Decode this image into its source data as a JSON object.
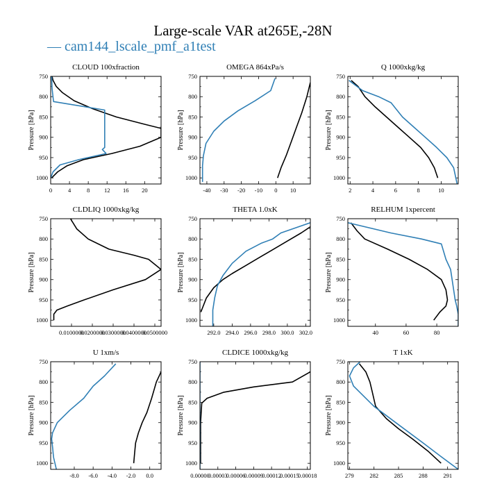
{
  "figure": {
    "title": "Large-scale VAR at265E,-28N",
    "legend_label": "cam144_lscale_pmf_a1test",
    "legend_dash": "—"
  },
  "colors": {
    "black_series": "#000000",
    "blue_series": "#2f7fb5"
  },
  "chart_data": [
    {
      "type": "line",
      "title": "CLOUD  100xfraction",
      "ylabel": "Pressure [hPa]",
      "xlim": [
        0,
        23.5
      ],
      "ylim": [
        750,
        1015
      ],
      "xticks": [
        0,
        4,
        8,
        12,
        16,
        20
      ],
      "xtick_labels": [
        "0",
        "4",
        "8",
        "12",
        "16",
        "20"
      ],
      "yticks": [
        750,
        800,
        850,
        900,
        950,
        1000
      ],
      "series": [
        {
          "color": "black",
          "x": [
            0.3,
            0.5,
            1.2,
            2.5,
            5,
            9,
            14,
            20,
            23.5,
            23.5,
            19,
            13,
            7,
            3.5,
            1.5,
            0.2
          ],
          "p": [
            750,
            760,
            775,
            790,
            810,
            830,
            850,
            868,
            878,
            900,
            922,
            940,
            955,
            970,
            985,
            1000
          ]
        },
        {
          "color": "blue",
          "x": [
            0.2,
            0.3,
            0.6,
            11.5,
            11.5,
            11.0,
            11.8,
            6,
            2,
            0.5,
            0
          ],
          "p": [
            750,
            780,
            812,
            833,
            925,
            930,
            940,
            955,
            968,
            985,
            1000
          ]
        }
      ]
    },
    {
      "type": "line",
      "title": "OMEGA  864xPa/s",
      "ylabel": "Pressure [hPa]",
      "xlim": [
        -44,
        20
      ],
      "ylim": [
        750,
        1015
      ],
      "xticks": [
        -40,
        -30,
        -20,
        -10,
        0,
        10
      ],
      "xtick_labels": [
        "-40",
        "-30",
        "-20",
        "-10",
        "0",
        "10"
      ],
      "yticks": [
        750,
        800,
        850,
        900,
        950,
        1000
      ],
      "series": [
        {
          "color": "black",
          "x": [
            20,
            18,
            15,
            12,
            9,
            6,
            3,
            1
          ],
          "p": [
            765,
            800,
            840,
            875,
            910,
            945,
            975,
            1000
          ]
        },
        {
          "color": "blue",
          "x": [
            -0.5,
            -3,
            -12,
            -22,
            -30,
            -36,
            -40.5,
            -42,
            -42.5,
            -42.5,
            -42.5
          ],
          "p": [
            755,
            785,
            810,
            835,
            860,
            885,
            915,
            945,
            970,
            990,
            1010
          ]
        }
      ]
    },
    {
      "type": "line",
      "title": "Q  1000xkg/kg",
      "ylabel": "Pressure [hPa]",
      "xlim": [
        1.8,
        11.5
      ],
      "ylim": [
        750,
        1015
      ],
      "xticks": [
        2,
        4,
        6,
        8,
        10
      ],
      "xtick_labels": [
        "2",
        "4",
        "6",
        "8",
        "10"
      ],
      "yticks": [
        750,
        800,
        850,
        900,
        950,
        1000
      ],
      "series": [
        {
          "color": "black",
          "x": [
            2.1,
            2.7,
            3.3,
            4.2,
            5.2,
            6.2,
            7.2,
            8.2,
            8.9,
            9.4,
            9.7
          ],
          "p": [
            760,
            775,
            800,
            825,
            850,
            875,
            900,
            925,
            950,
            975,
            1000
          ]
        },
        {
          "color": "blue",
          "x": [
            1.9,
            3.1,
            4.5,
            5.6,
            6.6,
            7.6,
            8.6,
            9.6,
            10.5,
            11.1,
            11.4
          ],
          "p": [
            760,
            785,
            800,
            815,
            850,
            875,
            900,
            925,
            950,
            975,
            1015
          ]
        }
      ]
    },
    {
      "type": "line",
      "title": "CLDLIQ  1000xkg/kg",
      "ylabel": "Pressure [hPa]",
      "xlim": [
        0,
        0.053
      ],
      "ylim": [
        750,
        1015
      ],
      "xticks": [
        0.01,
        0.02,
        0.03,
        0.04,
        0.05
      ],
      "xtick_labels": [
        "0.0100000",
        "0.0200000",
        "0.0300000",
        "0.0400000",
        "0.0500000"
      ],
      "yticks": [
        750,
        800,
        850,
        900,
        950,
        1000
      ],
      "series": [
        {
          "color": "black",
          "x": [
            0.0095,
            0.0125,
            0.018,
            0.028,
            0.04,
            0.047,
            0.053,
            0.0455,
            0.03,
            0.016,
            0.008,
            0.003,
            0.0015,
            0.0015
          ],
          "p": [
            750,
            775,
            800,
            825,
            840,
            850,
            875,
            900,
            925,
            950,
            965,
            975,
            985,
            1000
          ]
        }
      ]
    },
    {
      "type": "line",
      "title": "THETA  1.0xK",
      "ylabel": "Pressure [hPa]",
      "xlim": [
        290.5,
        302.5
      ],
      "ylim": [
        750,
        1015
      ],
      "xticks": [
        292,
        294,
        296,
        298,
        300,
        302
      ],
      "xtick_labels": [
        "292.0",
        "294.0",
        "296.0",
        "298.0",
        "300.0",
        "302.0"
      ],
      "yticks": [
        750,
        800,
        850,
        900,
        950,
        1000
      ],
      "series": [
        {
          "color": "black",
          "x": [
            302.5,
            301.5,
            300,
            298.5,
            297,
            295.5,
            294,
            293,
            292,
            291.2,
            290.6
          ],
          "p": [
            770,
            785,
            805,
            825,
            845,
            865,
            885,
            900,
            920,
            945,
            980
          ]
        },
        {
          "color": "blue",
          "x": [
            302.5,
            299.3,
            298.4,
            297.2,
            295.5,
            294,
            293,
            292.4,
            292.1,
            291.9,
            291.9
          ],
          "p": [
            760,
            785,
            800,
            810,
            830,
            860,
            890,
            915,
            945,
            975,
            1015
          ]
        }
      ]
    },
    {
      "type": "line",
      "title": "RELHUM  1xpercent",
      "ylabel": "Pressure [hPa]",
      "xlim": [
        22,
        94
      ],
      "ylim": [
        750,
        1015
      ],
      "xticks": [
        40,
        60,
        80
      ],
      "xtick_labels": [
        "40",
        "60",
        "80"
      ],
      "yticks": [
        750,
        800,
        850,
        900,
        950,
        1000
      ],
      "series": [
        {
          "color": "black",
          "x": [
            24,
            28,
            33,
            48,
            62,
            74,
            83,
            86,
            87,
            86,
            82,
            78
          ],
          "p": [
            760,
            780,
            800,
            825,
            850,
            875,
            900,
            925,
            950,
            965,
            980,
            1000
          ]
        },
        {
          "color": "blue",
          "x": [
            22,
            50,
            70,
            83,
            86,
            89,
            90,
            91,
            92,
            93,
            94,
            94
          ],
          "p": [
            760,
            785,
            800,
            812,
            850,
            875,
            900,
            925,
            950,
            965,
            985,
            1015
          ]
        }
      ]
    },
    {
      "type": "line",
      "title": "U  1xm/s",
      "ylabel": "Pressure [hPa]",
      "xlim": [
        -10.5,
        1.2
      ],
      "ylim": [
        750,
        1015
      ],
      "xticks": [
        -8,
        -6,
        -4,
        -2,
        0
      ],
      "xtick_labels": [
        "-8.0",
        "-6.0",
        "-4.0",
        "-2.0",
        "0.0"
      ],
      "yticks": [
        750,
        800,
        850,
        900,
        950,
        1000
      ],
      "series": [
        {
          "color": "black",
          "x": [
            1.2,
            0.7,
            0.2,
            -0.3,
            -0.8,
            -1.2,
            -1.5,
            -1.6,
            -1.7
          ],
          "p": [
            775,
            800,
            840,
            875,
            900,
            925,
            950,
            975,
            1000
          ]
        },
        {
          "color": "blue",
          "x": [
            -3.6,
            -4.8,
            -6,
            -7,
            -8.5,
            -9.8,
            -10.3,
            -10.4,
            -10.3,
            -10.2,
            -9.9
          ],
          "p": [
            755,
            785,
            810,
            840,
            870,
            900,
            925,
            940,
            960,
            985,
            1015
          ]
        }
      ]
    },
    {
      "type": "line",
      "title": "CLDICE  1000xkg/kg",
      "ylabel": "Pressure [hPa]",
      "xlim": [
        0,
        0.000185
      ],
      "ylim": [
        750,
        1015
      ],
      "xticks": [
        0,
        3e-05,
        6e-05,
        9e-05,
        0.00012,
        0.00015,
        0.00018
      ],
      "xtick_labels": [
        "0.00000",
        "0.00003",
        "0.00006",
        "0.00009",
        "0.00012",
        "0.00015",
        "0.00018"
      ],
      "yticks": [
        750,
        800,
        850,
        900,
        950,
        1000
      ],
      "series": [
        {
          "color": "black",
          "x": [
            0.000185,
            0.000155,
            9e-05,
            4e-05,
            1.2e-05,
            3e-06,
            1e-06,
            1e-06
          ],
          "p": [
            775,
            800,
            812,
            825,
            840,
            852,
            900,
            1000
          ]
        },
        {
          "color": "blue",
          "x": [
            0,
            0,
            0
          ],
          "p": [
            750,
            900,
            1015
          ]
        }
      ]
    },
    {
      "type": "line",
      "title": "T  1xK",
      "ylabel": "Pressure [hPa]",
      "xlim": [
        278.8,
        292.3
      ],
      "ylim": [
        750,
        1015
      ],
      "xticks": [
        279,
        282,
        285,
        288,
        291
      ],
      "xtick_labels": [
        "279",
        "282",
        "285",
        "288",
        "291"
      ],
      "yticks": [
        750,
        800,
        850,
        900,
        950,
        1000
      ],
      "series": [
        {
          "color": "black",
          "x": [
            280.2,
            281,
            281.5,
            281.8,
            282.2,
            283.5,
            285,
            286.7,
            288.6,
            290.2
          ],
          "p": [
            755,
            775,
            800,
            825,
            860,
            890,
            915,
            940,
            970,
            1000
          ]
        },
        {
          "color": "blue",
          "x": [
            280.3,
            279.5,
            279,
            279.5,
            282,
            285,
            288,
            290.3,
            292.3
          ],
          "p": [
            750,
            765,
            785,
            810,
            860,
            905,
            950,
            985,
            1015
          ]
        }
      ]
    }
  ]
}
